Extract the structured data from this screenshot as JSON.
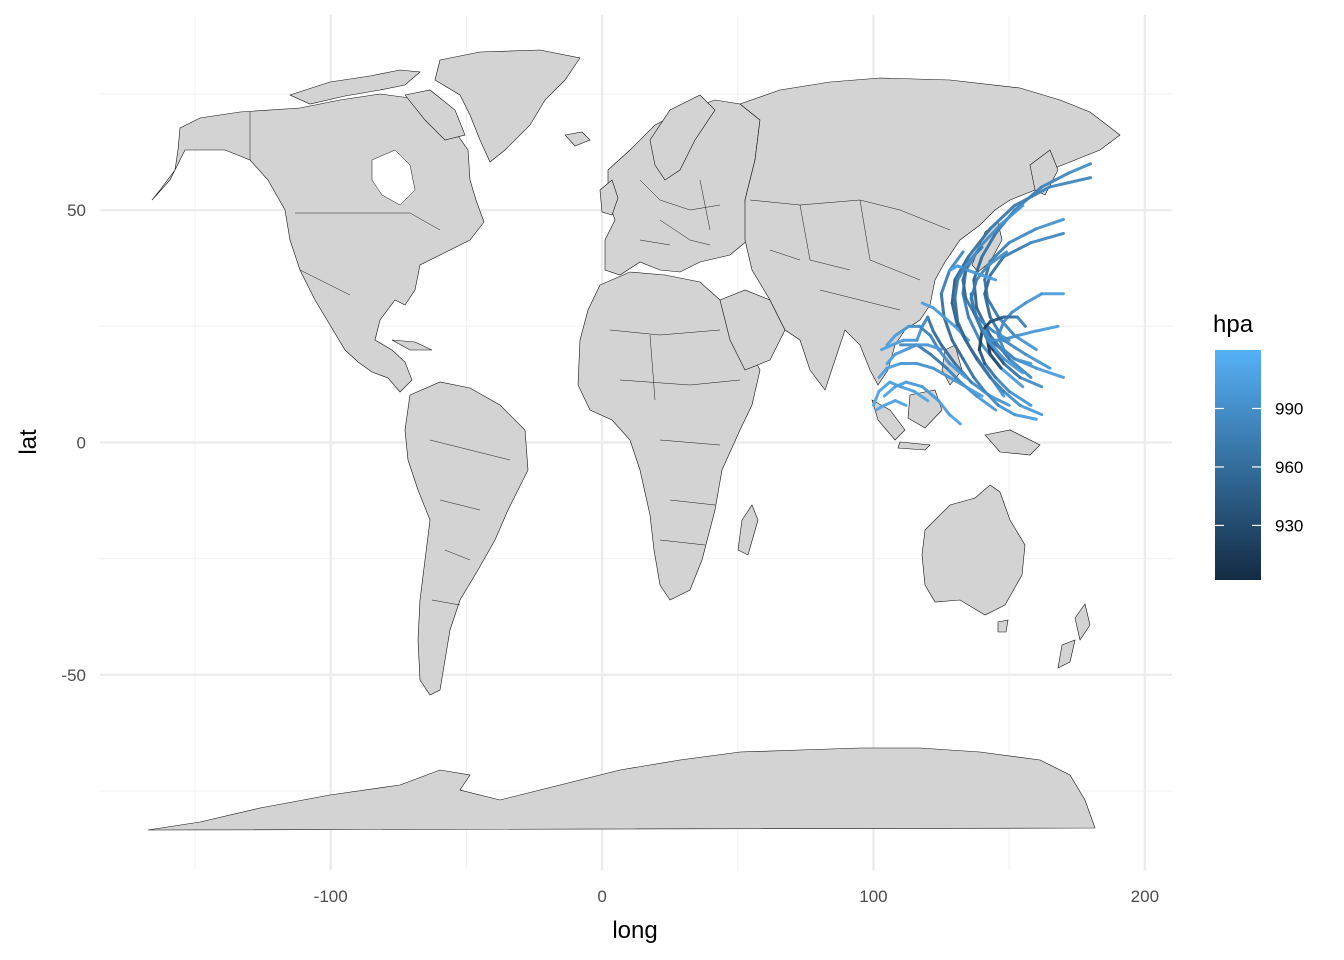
{
  "chart_data": {
    "type": "map",
    "xlabel": "long",
    "ylabel": "lat",
    "xlim": [
      -185,
      210
    ],
    "ylim": [
      -92,
      92
    ],
    "x_ticks": [
      -100,
      0,
      100,
      200
    ],
    "x_tick_labels": [
      "-100",
      "0",
      "100",
      "200"
    ],
    "x_minor": [
      -150,
      -50,
      50,
      150
    ],
    "y_ticks": [
      -50,
      0,
      50
    ],
    "y_tick_labels": [
      "-50",
      "0",
      "50"
    ],
    "y_minor": [
      -75,
      -25,
      25,
      75
    ],
    "grid": true,
    "land_fill": "#d3d3d3",
    "land_stroke": "#111111",
    "legend": {
      "title": "hpa",
      "position": "right",
      "range": [
        902,
        1020
      ],
      "breaks": [
        930,
        960,
        990
      ],
      "break_labels": [
        "930",
        "960",
        "990"
      ],
      "color_low": "#132b43",
      "color_high": "#56b1f7"
    },
    "tracks": [
      {
        "points": [
          [
            158,
            14
          ],
          [
            150,
            18
          ],
          [
            143,
            23
          ],
          [
            138,
            29
          ],
          [
            137,
            35
          ],
          [
            140,
            40
          ],
          [
            145,
            45
          ],
          [
            152,
            50
          ],
          [
            162,
            55
          ],
          [
            172,
            58
          ],
          [
            180,
            60
          ]
        ],
        "pressure": [
          990,
          975,
          960,
          950,
          950,
          960,
          970,
          975,
          980,
          985,
          990
        ]
      },
      {
        "points": [
          [
            148,
            10
          ],
          [
            142,
            15
          ],
          [
            136,
            20
          ],
          [
            131,
            25
          ],
          [
            129,
            30
          ],
          [
            130,
            35
          ],
          [
            135,
            40
          ],
          [
            143,
            46
          ],
          [
            152,
            51
          ],
          [
            165,
            55
          ],
          [
            180,
            57
          ]
        ],
        "pressure": [
          1000,
          985,
          970,
          955,
          945,
          950,
          960,
          970,
          975,
          980,
          985
        ]
      },
      {
        "points": [
          [
            160,
            20
          ],
          [
            152,
            23
          ],
          [
            146,
            27
          ],
          [
            142,
            31
          ],
          [
            141,
            35
          ],
          [
            143,
            39
          ],
          [
            150,
            43
          ],
          [
            160,
            46
          ],
          [
            170,
            48
          ]
        ],
        "pressure": [
          1000,
          990,
          975,
          965,
          965,
          970,
          980,
          990,
          995
        ]
      },
      {
        "points": [
          [
            155,
            12
          ],
          [
            147,
            16
          ],
          [
            140,
            21
          ],
          [
            135,
            27
          ],
          [
            133,
            32
          ],
          [
            134,
            37
          ],
          [
            139,
            42
          ],
          [
            147,
            47
          ],
          [
            155,
            51
          ]
        ],
        "pressure": [
          1005,
          995,
          985,
          975,
          970,
          975,
          985,
          990,
          995
        ]
      },
      {
        "points": [
          [
            165,
            16
          ],
          [
            156,
            19
          ],
          [
            148,
            22
          ],
          [
            143,
            27
          ],
          [
            141,
            32
          ],
          [
            143,
            36
          ],
          [
            148,
            40
          ],
          [
            158,
            43
          ],
          [
            170,
            45
          ]
        ],
        "pressure": [
          1000,
          990,
          980,
          960,
          950,
          960,
          970,
          980,
          990
        ]
      },
      {
        "points": [
          [
            150,
            22
          ],
          [
            144,
            24
          ],
          [
            138,
            27
          ],
          [
            134,
            31
          ],
          [
            133,
            35
          ],
          [
            135,
            39
          ],
          [
            140,
            42
          ]
        ],
        "pressure": [
          1000,
          990,
          975,
          960,
          955,
          965,
          980
        ]
      },
      {
        "points": [
          [
            170,
            32
          ],
          [
            162,
            32
          ],
          [
            156,
            30
          ],
          [
            151,
            28
          ],
          [
            148,
            26
          ],
          [
            146,
            23
          ],
          [
            148,
            20
          ],
          [
            152,
            18
          ],
          [
            158,
            17
          ]
        ],
        "pressure": [
          1005,
          1000,
          995,
          990,
          985,
          985,
          990,
          995,
          1000
        ]
      },
      {
        "points": [
          [
            162,
            12
          ],
          [
            154,
            14
          ],
          [
            148,
            17
          ],
          [
            144,
            20
          ],
          [
            142,
            22
          ],
          [
            143,
            19
          ],
          [
            147,
            16
          ]
        ],
        "pressure": [
          995,
          980,
          955,
          930,
          910,
          920,
          950
        ]
      },
      {
        "points": [
          [
            158,
            8
          ],
          [
            150,
            11
          ],
          [
            145,
            14
          ],
          [
            141,
            17
          ],
          [
            139,
            20
          ],
          [
            140,
            24
          ],
          [
            143,
            26
          ],
          [
            148,
            27
          ],
          [
            153,
            27
          ],
          [
            156,
            25
          ]
        ],
        "pressure": [
          1000,
          990,
          975,
          955,
          930,
          915,
          925,
          950,
          970,
          985
        ]
      },
      {
        "points": [
          [
            170,
            14
          ],
          [
            160,
            16
          ],
          [
            152,
            18
          ],
          [
            145,
            21
          ],
          [
            140,
            24
          ],
          [
            137,
            28
          ],
          [
            136,
            32
          ]
        ],
        "pressure": [
          1005,
          1000,
          990,
          975,
          960,
          955,
          965
        ]
      },
      {
        "points": [
          [
            160,
            5
          ],
          [
            152,
            6
          ],
          [
            146,
            8
          ],
          [
            141,
            11
          ],
          [
            137,
            14
          ],
          [
            133,
            18
          ],
          [
            129,
            22
          ],
          [
            126,
            27
          ],
          [
            125,
            32
          ],
          [
            128,
            37
          ],
          [
            133,
            41
          ]
        ],
        "pressure": [
          1005,
          1000,
          990,
          980,
          970,
          960,
          955,
          960,
          970,
          980,
          990
        ]
      },
      {
        "points": [
          [
            145,
            7
          ],
          [
            138,
            10
          ],
          [
            132,
            13
          ],
          [
            127,
            16
          ],
          [
            121,
            19
          ],
          [
            116,
            21
          ],
          [
            110,
            21
          ]
        ],
        "pressure": [
          1005,
          995,
          985,
          975,
          965,
          980,
          995
        ]
      },
      {
        "points": [
          [
            140,
            10
          ],
          [
            134,
            12
          ],
          [
            128,
            14
          ],
          [
            122,
            16
          ],
          [
            116,
            17
          ],
          [
            110,
            17
          ],
          [
            105,
            16
          ],
          [
            102,
            14
          ]
        ],
        "pressure": [
          1005,
          1000,
          995,
          990,
          995,
          1000,
          1005,
          1008
        ]
      },
      {
        "points": [
          [
            132,
            4
          ],
          [
            128,
            6
          ],
          [
            124,
            9
          ],
          [
            118,
            12
          ],
          [
            112,
            13
          ],
          [
            108,
            12
          ],
          [
            104,
            10
          ]
        ],
        "pressure": [
          1008,
          1005,
          1000,
          998,
          1002,
          1005,
          1008
        ]
      },
      {
        "points": [
          [
            150,
            8
          ],
          [
            143,
            10
          ],
          [
            136,
            13
          ],
          [
            130,
            17
          ],
          [
            125,
            21
          ],
          [
            122,
            24
          ],
          [
            120,
            27
          ],
          [
            118,
            25
          ],
          [
            116,
            22
          ],
          [
            111,
            22
          ],
          [
            107,
            21
          ],
          [
            103,
            20
          ]
        ],
        "pressure": [
          1000,
          990,
          980,
          965,
          955,
          960,
          975,
          990,
          995,
          1000,
          1005,
          1008
        ]
      },
      {
        "points": [
          [
            135,
            22
          ],
          [
            130,
            25
          ],
          [
            126,
            27
          ],
          [
            122,
            29
          ],
          [
            118,
            30
          ]
        ],
        "pressure": [
          1005,
          1000,
          998,
          1000,
          1005
        ]
      },
      {
        "points": [
          [
            134,
            14
          ],
          [
            128,
            17
          ],
          [
            124,
            20
          ],
          [
            121,
            23
          ],
          [
            117,
            25
          ],
          [
            113,
            25
          ],
          [
            108,
            23
          ],
          [
            105,
            21
          ]
        ],
        "pressure": [
          1000,
          995,
          985,
          975,
          985,
          995,
          1002,
          1006
        ]
      },
      {
        "points": [
          [
            120,
            9
          ],
          [
            115,
            11
          ],
          [
            110,
            12
          ],
          [
            106,
            13
          ],
          [
            102,
            11
          ],
          [
            100,
            8
          ]
        ],
        "pressure": [
          1008,
          1005,
          1003,
          1005,
          1008,
          1010
        ]
      },
      {
        "points": [
          [
            125,
            20
          ],
          [
            120,
            21
          ],
          [
            116,
            21
          ],
          [
            112,
            20
          ],
          [
            108,
            19
          ],
          [
            105,
            17
          ]
        ],
        "pressure": [
          1002,
          998,
          995,
          998,
          1002,
          1006
        ]
      },
      {
        "points": [
          [
            112,
            8
          ],
          [
            108,
            9
          ],
          [
            104,
            8
          ],
          [
            101,
            7
          ]
        ],
        "pressure": [
          1008,
          1006,
          1008,
          1010
        ]
      },
      {
        "points": [
          [
            155,
            15
          ],
          [
            148,
            18
          ],
          [
            142,
            22
          ],
          [
            138,
            27
          ],
          [
            136,
            31
          ],
          [
            138,
            35
          ],
          [
            142,
            38
          ],
          [
            149,
            41
          ]
        ],
        "pressure": [
          1002,
          995,
          985,
          975,
          970,
          975,
          985,
          995
        ]
      },
      {
        "points": [
          [
            168,
            25
          ],
          [
            160,
            24
          ],
          [
            153,
            23
          ],
          [
            147,
            22
          ],
          [
            143,
            22
          ],
          [
            141,
            24
          ]
        ],
        "pressure": [
          1005,
          1000,
          995,
          990,
          988,
          992
        ]
      },
      {
        "points": [
          [
            145,
            35
          ],
          [
            140,
            36
          ],
          [
            135,
            37
          ],
          [
            131,
            38
          ],
          [
            128,
            37
          ]
        ],
        "pressure": [
          1005,
          1000,
          998,
          1000,
          1005
        ]
      },
      {
        "points": [
          [
            162,
            6
          ],
          [
            154,
            8
          ],
          [
            148,
            11
          ],
          [
            143,
            14
          ],
          [
            138,
            18
          ],
          [
            134,
            22
          ],
          [
            131,
            26
          ],
          [
            130,
            31
          ],
          [
            131,
            35
          ],
          [
            134,
            38
          ],
          [
            138,
            41
          ]
        ],
        "pressure": [
          1005,
          995,
          985,
          970,
          960,
          950,
          955,
          965,
          975,
          985,
          995
        ]
      }
    ]
  }
}
